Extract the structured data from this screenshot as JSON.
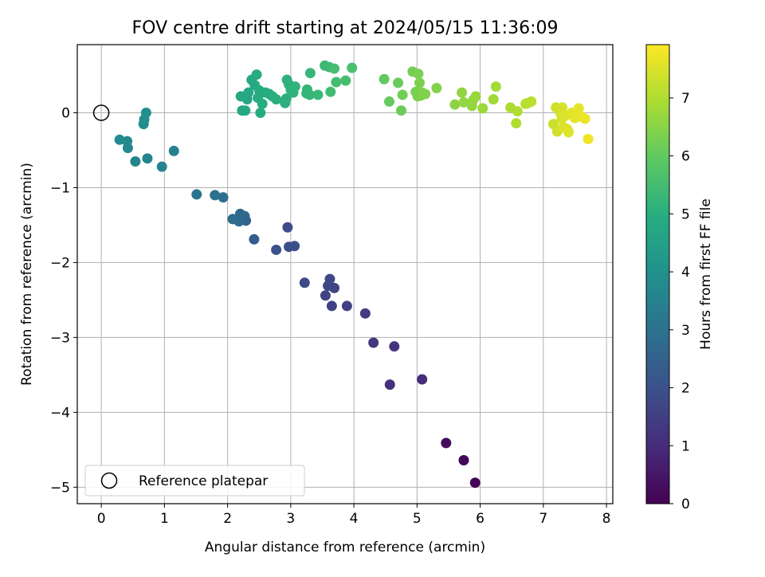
{
  "chart_data": {
    "type": "scatter",
    "title": "FOV centre drift starting at 2024/05/15 11:36:09",
    "xlabel": "Angular distance from reference (arcmin)",
    "ylabel": "Rotation from reference (arcmin)",
    "xlim": [
      -0.38,
      8.1
    ],
    "ylim": [
      -5.22,
      0.91
    ],
    "xticks": [
      0,
      1,
      2,
      3,
      4,
      5,
      6,
      7,
      8
    ],
    "yticks": [
      0,
      -1,
      -2,
      -3,
      -4,
      -5
    ],
    "xtick_labels": [
      "0",
      "1",
      "2",
      "3",
      "4",
      "5",
      "6",
      "7",
      "8"
    ],
    "ytick_labels": [
      "0",
      "−1",
      "−2",
      "−3",
      "−4",
      "−5"
    ],
    "grid": true,
    "legend": {
      "placement": "lower-left",
      "entries": [
        "Reference platepar"
      ]
    },
    "colorbar": {
      "label": "Hours from first FF file",
      "colormap": "viridis",
      "range": [
        0,
        7.92
      ],
      "ticks": [
        0,
        1,
        2,
        3,
        4,
        5,
        6,
        7
      ],
      "tick_labels": [
        "0",
        "1",
        "2",
        "3",
        "4",
        "5",
        "6",
        "7"
      ]
    },
    "reference_point": {
      "x": 0,
      "y": 0,
      "label": "Reference platepar"
    },
    "series": [
      {
        "points": [
          [
            5.92,
            -4.94,
            0.05
          ],
          [
            5.74,
            -4.64,
            0.15
          ],
          [
            5.46,
            -4.41,
            0.25
          ],
          [
            5.08,
            -3.56,
            1.05
          ],
          [
            4.57,
            -3.63,
            1.1
          ],
          [
            4.64,
            -3.12,
            1.2
          ],
          [
            4.31,
            -3.07,
            1.3
          ],
          [
            4.18,
            -2.68,
            1.4
          ],
          [
            3.89,
            -2.58,
            1.5
          ],
          [
            3.65,
            -2.58,
            1.55
          ],
          [
            3.55,
            -2.44,
            1.6
          ],
          [
            3.69,
            -2.34,
            1.65
          ],
          [
            3.59,
            -2.31,
            1.7
          ],
          [
            3.62,
            -2.22,
            1.75
          ],
          [
            3.22,
            -2.27,
            1.8
          ],
          [
            2.95,
            -1.53,
            1.85
          ],
          [
            2.97,
            -1.79,
            1.9
          ],
          [
            3.06,
            -1.78,
            1.95
          ],
          [
            2.77,
            -1.83,
            2.0
          ],
          [
            2.42,
            -1.69,
            2.3
          ],
          [
            2.29,
            -1.44,
            2.55
          ],
          [
            2.2,
            -1.35,
            2.65
          ],
          [
            2.27,
            -1.38,
            2.7
          ],
          [
            2.18,
            -1.45,
            2.75
          ],
          [
            2.08,
            -1.42,
            2.8
          ],
          [
            1.93,
            -1.13,
            2.9
          ],
          [
            1.8,
            -1.1,
            2.95
          ],
          [
            1.51,
            -1.09,
            3.05
          ],
          [
            1.15,
            -0.51,
            3.5
          ],
          [
            0.96,
            -0.72,
            3.55
          ],
          [
            0.73,
            -0.61,
            3.6
          ],
          [
            0.54,
            -0.65,
            3.65
          ],
          [
            0.42,
            -0.47,
            3.7
          ],
          [
            0.41,
            -0.38,
            3.75
          ],
          [
            0.29,
            -0.36,
            3.8
          ],
          [
            0.67,
            -0.15,
            3.85
          ],
          [
            0.68,
            -0.09,
            3.9
          ],
          [
            0.71,
            0.0,
            3.95
          ],
          [
            2.21,
            0.22,
            4.7
          ],
          [
            2.23,
            0.03,
            4.72
          ],
          [
            2.28,
            0.03,
            4.74
          ],
          [
            2.31,
            0.18,
            4.76
          ],
          [
            2.33,
            0.27,
            4.78
          ],
          [
            2.38,
            0.44,
            4.8
          ],
          [
            2.43,
            0.37,
            4.82
          ],
          [
            2.46,
            0.51,
            4.84
          ],
          [
            2.48,
            0.2,
            4.86
          ],
          [
            2.5,
            0.3,
            4.88
          ],
          [
            2.52,
            0.0,
            4.9
          ],
          [
            2.55,
            0.12,
            4.92
          ],
          [
            2.6,
            0.27,
            4.94
          ],
          [
            2.66,
            0.25,
            4.96
          ],
          [
            2.71,
            0.22,
            4.98
          ],
          [
            2.77,
            0.18,
            5.0
          ],
          [
            2.91,
            0.13,
            5.04
          ],
          [
            2.93,
            0.19,
            5.06
          ],
          [
            2.94,
            0.44,
            5.08
          ],
          [
            2.97,
            0.38,
            5.1
          ],
          [
            3.0,
            0.31,
            5.12
          ],
          [
            3.04,
            0.27,
            5.14
          ],
          [
            3.07,
            0.35,
            5.16
          ],
          [
            3.25,
            0.26,
            5.2
          ],
          [
            3.26,
            0.31,
            5.22
          ],
          [
            3.3,
            0.24,
            5.24
          ],
          [
            3.31,
            0.53,
            5.26
          ],
          [
            3.43,
            0.24,
            5.3
          ],
          [
            3.54,
            0.63,
            5.35
          ],
          [
            3.61,
            0.61,
            5.4
          ],
          [
            3.63,
            0.28,
            5.45
          ],
          [
            3.72,
            0.41,
            5.5
          ],
          [
            3.69,
            0.59,
            5.52
          ],
          [
            3.87,
            0.43,
            5.55
          ],
          [
            3.97,
            0.6,
            5.6
          ],
          [
            4.48,
            0.45,
            6.0
          ],
          [
            4.56,
            0.15,
            6.05
          ],
          [
            4.7,
            0.4,
            6.1
          ],
          [
            4.75,
            0.03,
            6.15
          ],
          [
            4.77,
            0.24,
            6.2
          ],
          [
            4.93,
            0.55,
            6.25
          ],
          [
            4.98,
            0.28,
            6.28
          ],
          [
            5.01,
            0.22,
            6.3
          ],
          [
            5.02,
            0.52,
            6.32
          ],
          [
            5.04,
            0.4,
            6.34
          ],
          [
            5.06,
            0.23,
            6.36
          ],
          [
            5.08,
            0.27,
            6.38
          ],
          [
            5.13,
            0.25,
            6.4
          ],
          [
            5.31,
            0.33,
            6.45
          ],
          [
            5.6,
            0.11,
            6.55
          ],
          [
            5.71,
            0.27,
            6.6
          ],
          [
            5.74,
            0.14,
            6.62
          ],
          [
            5.87,
            0.09,
            6.65
          ],
          [
            5.89,
            0.17,
            6.67
          ],
          [
            5.93,
            0.22,
            6.7
          ],
          [
            6.04,
            0.06,
            6.75
          ],
          [
            6.21,
            0.18,
            6.8
          ],
          [
            6.25,
            0.35,
            6.85
          ],
          [
            6.48,
            0.07,
            6.95
          ],
          [
            6.57,
            -0.14,
            6.98
          ],
          [
            6.59,
            0.02,
            7.0
          ],
          [
            6.72,
            0.12,
            7.05
          ],
          [
            6.76,
            0.13,
            7.08
          ],
          [
            6.81,
            0.15,
            7.1
          ],
          [
            7.16,
            -0.15,
            7.3
          ],
          [
            7.2,
            0.07,
            7.35
          ],
          [
            7.22,
            -0.25,
            7.38
          ],
          [
            7.27,
            0.0,
            7.42
          ],
          [
            7.29,
            -0.08,
            7.45
          ],
          [
            7.3,
            0.07,
            7.48
          ],
          [
            7.32,
            -0.19,
            7.5
          ],
          [
            7.35,
            -0.04,
            7.52
          ],
          [
            7.38,
            -0.22,
            7.54
          ],
          [
            7.4,
            -0.26,
            7.56
          ],
          [
            7.45,
            0.0,
            7.6
          ],
          [
            7.5,
            -0.07,
            7.62
          ],
          [
            7.56,
            0.06,
            7.65
          ],
          [
            7.6,
            -0.05,
            7.7
          ],
          [
            7.66,
            -0.08,
            7.72
          ],
          [
            7.71,
            -0.35,
            7.75
          ]
        ]
      }
    ]
  }
}
